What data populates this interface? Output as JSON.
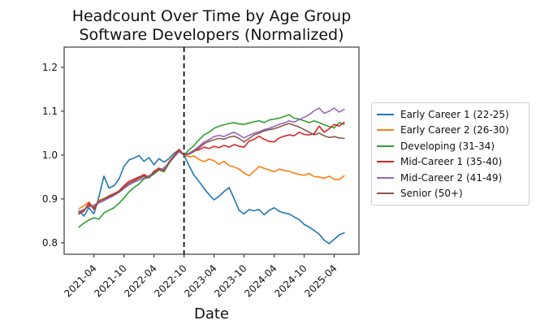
{
  "chart_data": {
    "type": "line",
    "title_lines": [
      "Headcount Over Time by Age Group",
      "Software Developers (Normalized)"
    ],
    "xlabel": "Date",
    "ylabel": "",
    "grid": false,
    "legend_position": "right",
    "ylim": [
      0.774,
      1.246
    ],
    "y_tick_labels": [
      "0.8",
      "0.9",
      "1.0",
      "1.1",
      "1.2"
    ],
    "y_ticks": [
      0.8,
      0.9,
      1.0,
      1.1,
      1.2
    ],
    "x_tick_labels": [
      "2021-04",
      "2021-10",
      "2022-04",
      "2022-10",
      "2023-04",
      "2023-10",
      "2024-04",
      "2024-10",
      "2025-04"
    ],
    "x_tick_indices": [
      3,
      9,
      15,
      21,
      27,
      33,
      39,
      45,
      51
    ],
    "x": [
      "2021-01",
      "2021-02",
      "2021-03",
      "2021-04",
      "2021-05",
      "2021-06",
      "2021-07",
      "2021-08",
      "2021-09",
      "2021-10",
      "2021-11",
      "2021-12",
      "2022-01",
      "2022-02",
      "2022-03",
      "2022-04",
      "2022-05",
      "2022-06",
      "2022-07",
      "2022-08",
      "2022-09",
      "2022-10",
      "2022-11",
      "2022-12",
      "2023-01",
      "2023-02",
      "2023-03",
      "2023-04",
      "2023-05",
      "2023-06",
      "2023-07",
      "2023-08",
      "2023-09",
      "2023-10",
      "2023-11",
      "2023-12",
      "2024-01",
      "2024-02",
      "2024-03",
      "2024-04",
      "2024-05",
      "2024-06",
      "2024-07",
      "2024-08",
      "2024-09",
      "2024-10",
      "2024-11",
      "2024-12",
      "2025-01",
      "2025-02",
      "2025-03",
      "2025-04",
      "2025-05",
      "2025-06"
    ],
    "vline": {
      "x_month": "2022-10",
      "style": "dashed",
      "color": "#000000"
    },
    "normalization_value": 1.0,
    "series": [
      {
        "id": "early-career-1",
        "name": "Early Career 1 (22-25)",
        "color": "#1f77b4",
        "values": [
          0.873,
          0.861,
          0.88,
          0.866,
          0.905,
          0.952,
          0.925,
          0.93,
          0.945,
          0.974,
          0.989,
          0.993,
          0.999,
          0.986,
          0.994,
          0.978,
          0.992,
          0.984,
          0.992,
          1.004,
          1.012,
          1.0,
          0.976,
          0.954,
          0.94,
          0.924,
          0.91,
          0.898,
          0.906,
          0.917,
          0.926,
          0.901,
          0.874,
          0.866,
          0.876,
          0.873,
          0.876,
          0.864,
          0.874,
          0.88,
          0.872,
          0.868,
          0.866,
          0.859,
          0.853,
          0.842,
          0.836,
          0.828,
          0.82,
          0.806,
          0.798,
          0.808,
          0.818,
          0.823
        ]
      },
      {
        "id": "early-career-2",
        "name": "Early Career 2 (26-30)",
        "color": "#ff7f0e",
        "values": [
          0.878,
          0.884,
          0.893,
          0.879,
          0.897,
          0.901,
          0.906,
          0.909,
          0.917,
          0.925,
          0.936,
          0.942,
          0.948,
          0.956,
          0.951,
          0.963,
          0.97,
          0.966,
          0.985,
          0.999,
          1.012,
          1.0,
          0.996,
          0.998,
          0.99,
          0.985,
          0.991,
          0.987,
          0.979,
          0.986,
          0.976,
          0.973,
          0.968,
          0.959,
          0.953,
          0.963,
          0.974,
          0.97,
          0.966,
          0.962,
          0.968,
          0.965,
          0.963,
          0.959,
          0.956,
          0.954,
          0.958,
          0.951,
          0.95,
          0.947,
          0.952,
          0.945,
          0.944,
          0.953
        ]
      },
      {
        "id": "developing",
        "name": "Developing (31-34)",
        "color": "#2ca02c",
        "values": [
          0.836,
          0.845,
          0.852,
          0.857,
          0.854,
          0.868,
          0.874,
          0.88,
          0.89,
          0.902,
          0.916,
          0.926,
          0.934,
          0.946,
          0.949,
          0.957,
          0.966,
          0.962,
          0.981,
          0.996,
          1.01,
          1.0,
          1.012,
          1.022,
          1.035,
          1.046,
          1.052,
          1.061,
          1.066,
          1.069,
          1.072,
          1.074,
          1.071,
          1.07,
          1.073,
          1.076,
          1.078,
          1.074,
          1.08,
          1.082,
          1.084,
          1.088,
          1.092,
          1.084,
          1.082,
          1.078,
          1.074,
          1.078,
          1.074,
          1.069,
          1.065,
          1.062,
          1.074,
          1.07
        ]
      },
      {
        "id": "mid-career-1",
        "name": "Mid-Career 1 (35-40)",
        "color": "#d62728",
        "values": [
          0.866,
          0.872,
          0.891,
          0.876,
          0.894,
          0.9,
          0.907,
          0.912,
          0.918,
          0.93,
          0.94,
          0.945,
          0.95,
          0.955,
          0.948,
          0.963,
          0.97,
          0.965,
          0.984,
          0.998,
          1.013,
          1.0,
          1.004,
          1.01,
          1.012,
          1.018,
          1.015,
          1.02,
          1.017,
          1.022,
          1.018,
          1.024,
          1.02,
          1.018,
          1.032,
          1.036,
          1.043,
          1.036,
          1.031,
          1.03,
          1.039,
          1.043,
          1.046,
          1.044,
          1.052,
          1.047,
          1.046,
          1.049,
          1.066,
          1.052,
          1.06,
          1.07,
          1.066,
          1.075
        ]
      },
      {
        "id": "mid-career-2",
        "name": "Mid-Career 2 (41-49)",
        "color": "#9467bd",
        "values": [
          0.871,
          0.876,
          0.882,
          0.886,
          0.891,
          0.896,
          0.902,
          0.908,
          0.915,
          0.924,
          0.932,
          0.938,
          0.943,
          0.948,
          0.953,
          0.96,
          0.966,
          0.971,
          0.982,
          0.995,
          1.008,
          1.0,
          1.004,
          1.011,
          1.02,
          1.03,
          1.035,
          1.042,
          1.045,
          1.042,
          1.048,
          1.052,
          1.046,
          1.039,
          1.045,
          1.05,
          1.053,
          1.058,
          1.061,
          1.065,
          1.07,
          1.073,
          1.078,
          1.075,
          1.081,
          1.086,
          1.092,
          1.101,
          1.107,
          1.095,
          1.1,
          1.107,
          1.098,
          1.104
        ]
      },
      {
        "id": "senior",
        "name": "Senior (50+)",
        "color": "#8c564b",
        "values": [
          0.868,
          0.874,
          0.886,
          0.881,
          0.895,
          0.899,
          0.905,
          0.91,
          0.916,
          0.926,
          0.936,
          0.941,
          0.947,
          0.952,
          0.949,
          0.96,
          0.967,
          0.964,
          0.983,
          0.997,
          1.01,
          1.0,
          1.002,
          1.008,
          1.016,
          1.026,
          1.031,
          1.035,
          1.038,
          1.036,
          1.041,
          1.043,
          1.038,
          1.03,
          1.038,
          1.046,
          1.05,
          1.055,
          1.058,
          1.06,
          1.064,
          1.068,
          1.072,
          1.068,
          1.064,
          1.058,
          1.052,
          1.046,
          1.05,
          1.044,
          1.04,
          1.042,
          1.039,
          1.038
        ]
      }
    ]
  }
}
